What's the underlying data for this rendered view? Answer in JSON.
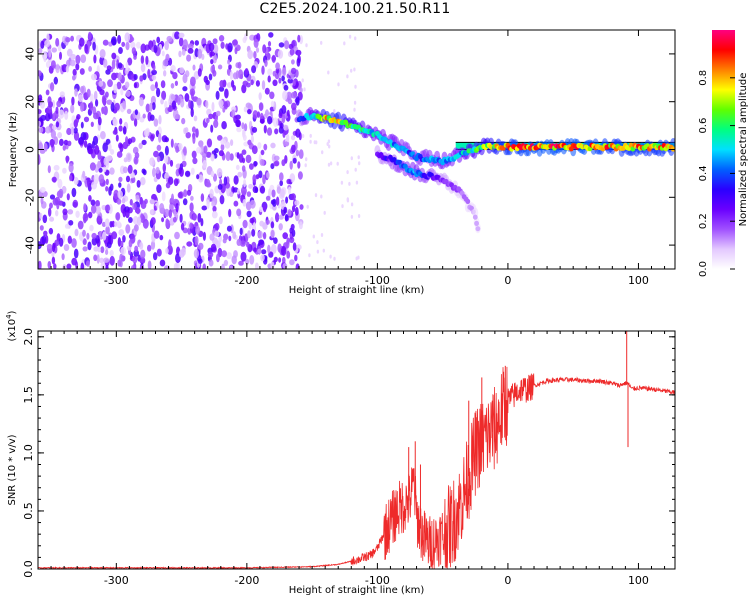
{
  "figure_title": "C2E5.2024.100.21.50.R11",
  "chart_data": [
    {
      "type": "heatmap",
      "name": "spectrogram",
      "xlabel": "Height of straight line (km)",
      "ylabel": "Frequency (Hz)",
      "xlim": [
        -360,
        128
      ],
      "ylim": [
        -50,
        50
      ],
      "x_ticks": [
        -300,
        -200,
        -100,
        0,
        100
      ],
      "y_ticks": [
        -40,
        -20,
        0,
        20,
        40
      ],
      "grid": false,
      "colorbar": {
        "label": "Normalized spectral amplitude",
        "range": [
          0.0,
          1.0
        ],
        "ticks": [
          0.0,
          0.2,
          0.4,
          0.6,
          0.8
        ],
        "tick_labels": [
          "0.0",
          "0.2",
          "0.4",
          "0.6",
          "0.8"
        ],
        "colors": [
          "#ffffff",
          "#e3c8ff",
          "#a050ff",
          "#6a00ff",
          "#2a00ff",
          "#0060ff",
          "#00e0ff",
          "#00ff80",
          "#60ff00",
          "#ffff00",
          "#ff8000",
          "#ff0000",
          "#ff0080"
        ]
      },
      "regions": {
        "noise_x_range": [
          -360,
          -158
        ],
        "noise_freq_range": [
          -50,
          48
        ],
        "noise_amplitude_range": [
          0.05,
          0.3
        ]
      },
      "ridge": [
        {
          "x": -160,
          "y": 13,
          "amp": 0.35
        },
        {
          "x": -150,
          "y": 14,
          "amp": 0.55
        },
        {
          "x": -140,
          "y": 13,
          "amp": 0.8
        },
        {
          "x": -130,
          "y": 12,
          "amp": 0.8
        },
        {
          "x": -120,
          "y": 10,
          "amp": 0.7
        },
        {
          "x": -110,
          "y": 8,
          "amp": 0.6
        },
        {
          "x": -100,
          "y": 6,
          "amp": 0.55
        },
        {
          "x": -90,
          "y": 3,
          "amp": 0.5
        },
        {
          "x": -80,
          "y": 0,
          "amp": 0.45
        },
        {
          "x": -70,
          "y": -3,
          "amp": 0.4
        },
        {
          "x": -60,
          "y": -4,
          "amp": 0.45
        },
        {
          "x": -50,
          "y": -5,
          "amp": 0.5
        },
        {
          "x": -40,
          "y": -3,
          "amp": 0.5
        },
        {
          "x": -30,
          "y": -1,
          "amp": 0.6
        },
        {
          "x": -20,
          "y": 1,
          "amp": 0.7
        },
        {
          "x": -10,
          "y": 1,
          "amp": 0.8
        },
        {
          "x": 0,
          "y": 1,
          "amp": 0.85
        },
        {
          "x": 20,
          "y": 1,
          "amp": 0.9
        },
        {
          "x": 40,
          "y": 1,
          "amp": 0.9
        },
        {
          "x": 60,
          "y": 1,
          "amp": 0.9
        },
        {
          "x": 80,
          "y": 1,
          "amp": 0.85
        },
        {
          "x": 100,
          "y": 1,
          "amp": 0.85
        },
        {
          "x": 128,
          "y": 1,
          "amp": 0.85
        }
      ],
      "branch": [
        {
          "x": -100,
          "y": -2,
          "amp": 0.25
        },
        {
          "x": -90,
          "y": -4,
          "amp": 0.35
        },
        {
          "x": -80,
          "y": -7,
          "amp": 0.45
        },
        {
          "x": -70,
          "y": -10,
          "amp": 0.5
        },
        {
          "x": -60,
          "y": -11,
          "amp": 0.35
        },
        {
          "x": -50,
          "y": -13,
          "amp": 0.25
        },
        {
          "x": -35,
          "y": -18,
          "amp": 0.15
        },
        {
          "x": -25,
          "y": -28,
          "amp": 0.12
        },
        {
          "x": -22,
          "y": -35,
          "amp": 0.1
        }
      ],
      "line_band_freq": [
        0,
        3
      ],
      "line_band_x_start": -40
    },
    {
      "type": "line",
      "name": "snr",
      "xlabel": "Height of straight line (km)",
      "ylabel": "SNR (10 * v/v)",
      "y_multiplier_label": "(x10",
      "y_multiplier_exponent": "4",
      "xlim": [
        -360,
        128
      ],
      "ylim": [
        0,
        2.05
      ],
      "x_ticks": [
        -300,
        -200,
        -100,
        0,
        100
      ],
      "y_ticks": [
        0.0,
        0.5,
        1.0,
        1.5,
        2.0
      ],
      "y_tick_labels": [
        "0.0",
        "0.5",
        "1.0",
        "1.5",
        "2.0"
      ],
      "grid": false,
      "series": [
        {
          "color": "#ee2a2a",
          "x": [
            -360,
            -300,
            -200,
            -150,
            -130,
            -115,
            -105,
            -100,
            -95,
            -90,
            -85,
            -80,
            -75,
            -72,
            -70,
            -65,
            -60,
            -55,
            -50,
            -45,
            -40,
            -35,
            -30,
            -25,
            -20,
            -15,
            -10,
            -5,
            0,
            5,
            10,
            15,
            20,
            25,
            30,
            40,
            50,
            60,
            70,
            80,
            85,
            90,
            92,
            95,
            100,
            110,
            128
          ],
          "y": [
            0.01,
            0.01,
            0.01,
            0.02,
            0.04,
            0.08,
            0.12,
            0.18,
            0.3,
            0.4,
            0.5,
            0.55,
            0.6,
            0.75,
            0.45,
            0.28,
            0.22,
            0.25,
            0.3,
            0.35,
            0.45,
            0.6,
            0.8,
            1.0,
            1.1,
            1.15,
            1.2,
            1.35,
            1.45,
            1.5,
            1.55,
            1.55,
            1.58,
            1.6,
            1.62,
            1.63,
            1.63,
            1.62,
            1.62,
            1.6,
            1.58,
            1.6,
            1.6,
            1.55,
            1.56,
            1.55,
            1.52
          ],
          "spikes": [
            {
              "x": -71,
              "y": 1.1
            },
            {
              "x": -76,
              "y": 1.05
            },
            {
              "x": -67,
              "y": 0.9
            },
            {
              "x": -30,
              "y": 1.45
            },
            {
              "x": -27,
              "y": 1.15
            },
            {
              "x": -20,
              "y": 1.65
            },
            {
              "x": -12,
              "y": 1.45
            },
            {
              "x": -2,
              "y": 1.75
            },
            {
              "x": 91,
              "y": 2.05
            },
            {
              "x": 92,
              "y": 1.05
            }
          ]
        }
      ]
    }
  ]
}
